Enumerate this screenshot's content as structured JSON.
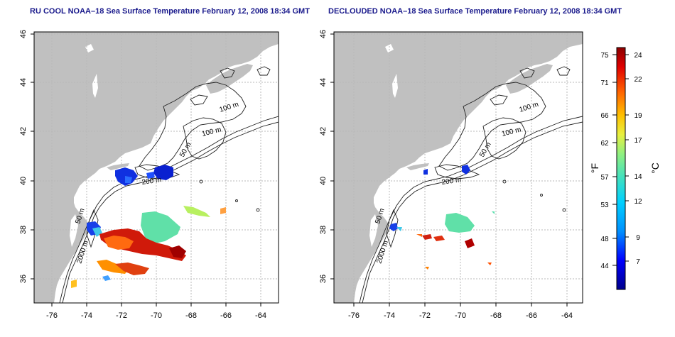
{
  "panels": [
    {
      "title": "RU COOL NOAA–18 Sea Surface Temperature February 12, 2008 18:34 GMT"
    },
    {
      "title": "DECLOUDED NOAA–18 Sea Surface Temperature February 12, 2008 18:34 GMT"
    }
  ],
  "axes": {
    "lon_ticks": [
      "-76",
      "-74",
      "-72",
      "-70",
      "-68",
      "-66",
      "-64"
    ],
    "lat_ticks": [
      "46",
      "44",
      "42",
      "40",
      "38",
      "36"
    ]
  },
  "contour_labels": {
    "m100a": "100 m",
    "m100b": "100 m",
    "m50a": "50 m",
    "m200": "200 m",
    "m50b": "50 m",
    "m2000": "2000 m"
  },
  "colorbar": {
    "f_unit": "°F",
    "c_unit": "°C",
    "f_ticks": [
      "75",
      "71",
      "66",
      "62",
      "57",
      "53",
      "48",
      "44"
    ],
    "c_ticks": [
      "24",
      "22",
      "19",
      "17",
      "14",
      "12",
      "9",
      "7"
    ],
    "colors": [
      "#00008b",
      "#0000ff",
      "#0080ff",
      "#00c8ff",
      "#40e0d0",
      "#80ff80",
      "#ffff00",
      "#ffa500",
      "#ff4500",
      "#cc0000",
      "#8b0000"
    ]
  }
}
